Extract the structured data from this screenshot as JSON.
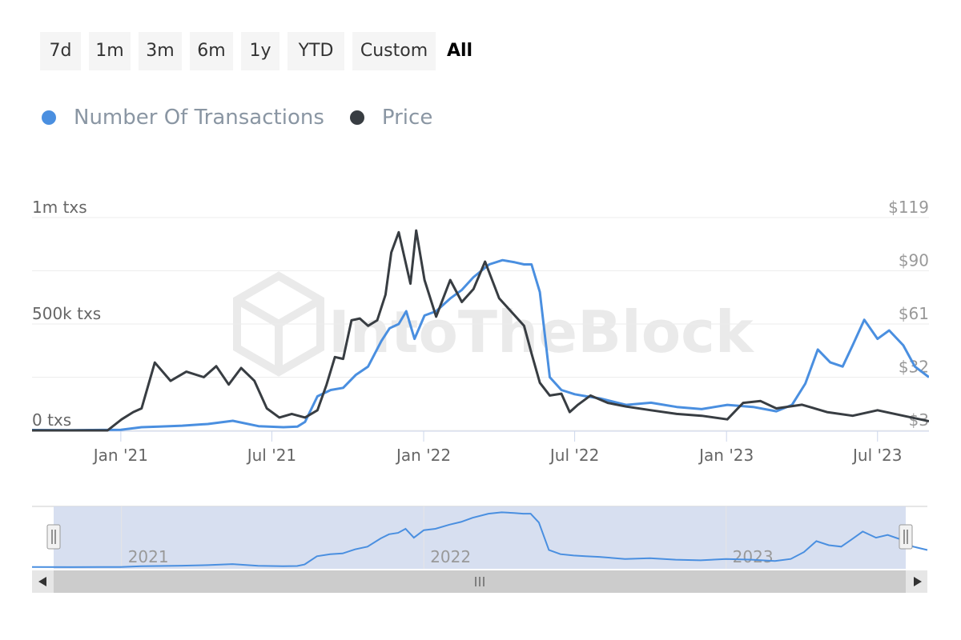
{
  "range_buttons": [
    "7d",
    "1m",
    "3m",
    "6m",
    "1y",
    "YTD",
    "Custom",
    "All"
  ],
  "active_range": "All",
  "watermark": "IntoTheBlock",
  "chart_data": {
    "type": "line",
    "x_axis": {
      "range": [
        "2020-09-15",
        "2023-09-01"
      ],
      "ticks": [
        {
          "date": "2020-12-31",
          "label": "Jan '21"
        },
        {
          "date": "2021-07-01",
          "label": "Jul '21"
        },
        {
          "date": "2021-12-31",
          "label": "Jan '22"
        },
        {
          "date": "2022-07-01",
          "label": "Jul '22"
        },
        {
          "date": "2022-12-31",
          "label": "Jan '23"
        },
        {
          "date": "2023-07-01",
          "label": "Jul '23"
        }
      ]
    },
    "left_axis": {
      "ticks": [
        {
          "v": 0,
          "label": "0 txs"
        },
        {
          "v": 500000,
          "label": "500k txs"
        },
        {
          "v": 1000000,
          "label": "1m txs"
        }
      ],
      "range": [
        0,
        1000000
      ]
    },
    "right_axis": {
      "ticks": [
        {
          "v": 3,
          "label": "$3"
        },
        {
          "v": 32,
          "label": "$32"
        },
        {
          "v": 61,
          "label": "$61"
        },
        {
          "v": 90,
          "label": "$90"
        },
        {
          "v": 119,
          "label": "$119"
        }
      ],
      "range": [
        3,
        119
      ]
    },
    "series": [
      {
        "name": "Number Of Transactions",
        "color": "#4a8fe0",
        "axis": "left",
        "x": [
          "2020-09-15",
          "2020-11-01",
          "2020-12-31",
          "2021-01-25",
          "2021-02-15",
          "2021-03-15",
          "2021-04-15",
          "2021-05-15",
          "2021-06-15",
          "2021-07-15",
          "2021-08-01",
          "2021-08-10",
          "2021-08-25",
          "2021-09-10",
          "2021-09-25",
          "2021-10-10",
          "2021-10-25",
          "2021-11-10",
          "2021-11-20",
          "2021-12-01",
          "2021-12-10",
          "2021-12-20",
          "2022-01-01",
          "2022-01-15",
          "2022-02-01",
          "2022-02-15",
          "2022-03-01",
          "2022-03-20",
          "2022-04-05",
          "2022-04-20",
          "2022-05-01",
          "2022-05-10",
          "2022-05-20",
          "2022-06-01",
          "2022-06-15",
          "2022-07-01",
          "2022-07-15",
          "2022-08-01",
          "2022-09-01",
          "2022-10-01",
          "2022-11-01",
          "2022-12-01",
          "2023-01-01",
          "2023-02-01",
          "2023-03-01",
          "2023-03-20",
          "2023-04-05",
          "2023-04-20",
          "2023-05-05",
          "2023-05-20",
          "2023-06-01",
          "2023-06-15",
          "2023-07-01",
          "2023-07-15",
          "2023-08-01",
          "2023-08-15",
          "2023-09-01"
        ],
        "values": [
          2000,
          1000,
          3000,
          15000,
          18000,
          22000,
          30000,
          45000,
          20000,
          15000,
          18000,
          40000,
          160000,
          190000,
          200000,
          260000,
          300000,
          420000,
          480000,
          500000,
          560000,
          430000,
          540000,
          560000,
          620000,
          660000,
          720000,
          780000,
          800000,
          790000,
          780000,
          780000,
          650000,
          250000,
          190000,
          170000,
          160000,
          150000,
          120000,
          130000,
          110000,
          100000,
          120000,
          110000,
          90000,
          120000,
          220000,
          380000,
          320000,
          300000,
          400000,
          520000,
          430000,
          470000,
          400000,
          300000,
          250000
        ]
      },
      {
        "name": "Price",
        "color": "#383d42",
        "axis": "right",
        "x": [
          "2020-09-15",
          "2020-11-01",
          "2020-12-01",
          "2020-12-15",
          "2021-01-01",
          "2021-01-15",
          "2021-01-25",
          "2021-02-10",
          "2021-03-01",
          "2021-03-20",
          "2021-04-10",
          "2021-04-25",
          "2021-05-10",
          "2021-05-25",
          "2021-06-10",
          "2021-06-25",
          "2021-07-10",
          "2021-07-25",
          "2021-08-10",
          "2021-08-25",
          "2021-09-05",
          "2021-09-15",
          "2021-09-25",
          "2021-10-05",
          "2021-10-15",
          "2021-10-25",
          "2021-11-05",
          "2021-11-15",
          "2021-11-22",
          "2021-12-01",
          "2021-12-08",
          "2021-12-15",
          "2021-12-22",
          "2022-01-01",
          "2022-01-15",
          "2022-02-01",
          "2022-02-15",
          "2022-03-01",
          "2022-03-15",
          "2022-04-01",
          "2022-04-15",
          "2022-05-01",
          "2022-05-10",
          "2022-05-20",
          "2022-06-01",
          "2022-06-15",
          "2022-06-25",
          "2022-07-05",
          "2022-07-20",
          "2022-08-10",
          "2022-09-01",
          "2022-10-01",
          "2022-11-01",
          "2022-12-01",
          "2023-01-01",
          "2023-01-20",
          "2023-02-10",
          "2023-03-01",
          "2023-04-01",
          "2023-05-01",
          "2023-06-01",
          "2023-07-01",
          "2023-08-01",
          "2023-09-01"
        ],
        "values": [
          3,
          3,
          3,
          3,
          9,
          13,
          15,
          40,
          30,
          35,
          32,
          38,
          28,
          37,
          30,
          15,
          10,
          12,
          10,
          14,
          28,
          43,
          42,
          63,
          64,
          60,
          63,
          77,
          100,
          111,
          97,
          83,
          112,
          85,
          65,
          85,
          73,
          80,
          95,
          75,
          68,
          60,
          45,
          29,
          22,
          23,
          13,
          17,
          22,
          18,
          16,
          14,
          12,
          11,
          9,
          18,
          19,
          15,
          17,
          13,
          11,
          14,
          11,
          8
        ]
      }
    ]
  }
}
